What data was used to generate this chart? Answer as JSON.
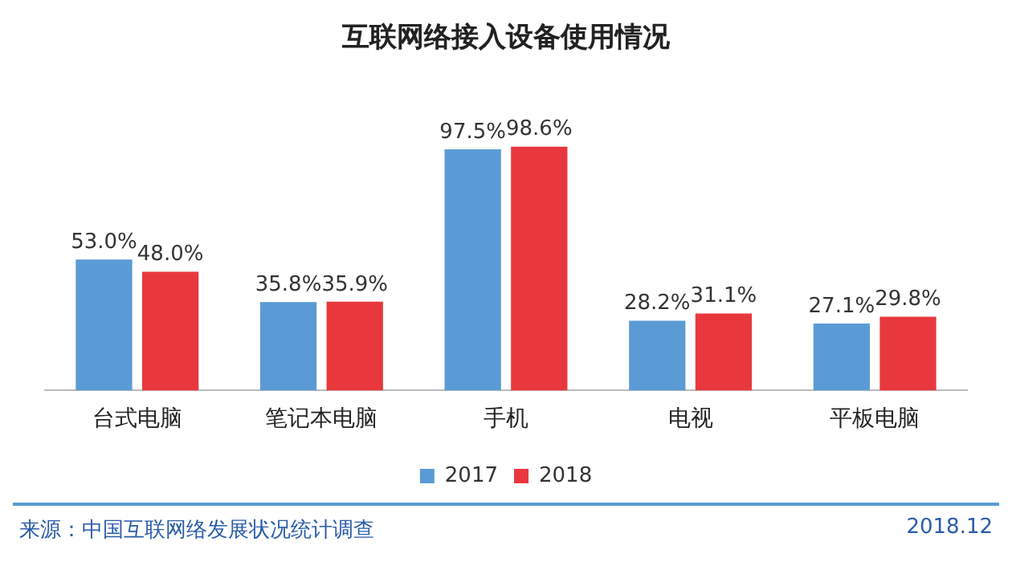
{
  "chart_data": {
    "type": "bar",
    "title": "互联网络接入设备使用情况",
    "categories": [
      "台式电脑",
      "笔记本电脑",
      "手机",
      "电视",
      "平板电脑"
    ],
    "series": [
      {
        "name": "2017",
        "color": "#5b9bd5",
        "values": [
          53.0,
          35.8,
          97.5,
          28.2,
          27.1
        ],
        "value_labels": [
          "53.0%",
          "35.8%",
          "97.5%",
          "28.2%",
          "27.1%"
        ]
      },
      {
        "name": "2018",
        "color": "#e8383d",
        "values": [
          48.0,
          35.9,
          98.6,
          31.1,
          29.8
        ],
        "value_labels": [
          "48.0%",
          "35.9%",
          "98.6%",
          "31.1%",
          "29.8%"
        ]
      }
    ],
    "legend": "bottom",
    "tick_labels": "x",
    "annotations": [
      "来源：中国互联网络发展状况统计调查",
      "2018.12"
    ]
  }
}
